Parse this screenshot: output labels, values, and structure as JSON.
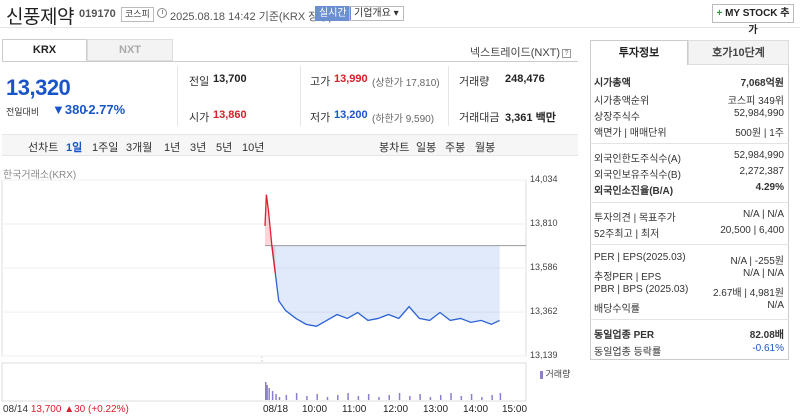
{
  "header": {
    "stock_name": "신풍제약",
    "stock_code": "019170",
    "market": "코스피",
    "datetime": "2025.08.18 14:42 기준(KRX 장중)",
    "realtime": "실시간",
    "company_info": "기업개요 ▾",
    "mystock_plus": "+",
    "mystock_label": " MY STOCK 추가"
  },
  "exchange_tabs": [
    "KRX",
    "NXT"
  ],
  "nextrade_label": "넥스트레이드(NXT)",
  "price": {
    "current": "13,320",
    "change_label": "전일대비",
    "change_arrow": "▼",
    "change_value": "380",
    "change_pct": "-2.77%"
  },
  "stats": {
    "prev_close_label": "전일",
    "prev_close": "13,700",
    "open_label": "시가",
    "open": "13,860",
    "high_label": "고가",
    "high": "13,990",
    "upper_limit": "(상한가 17,810)",
    "low_label": "저가",
    "low": "13,200",
    "lower_limit": "(하한가 9,590)",
    "volume_label": "거래량",
    "volume": "248,476",
    "amount_label": "거래대금",
    "amount": "3,361",
    "amount_unit": "백만"
  },
  "period_tabs": [
    "선차트",
    "1일",
    "1주일",
    "3개월",
    "1년",
    "3년",
    "5년",
    "10년"
  ],
  "candle_tabs": [
    "봉차트",
    "일봉",
    "주봉",
    "월봉"
  ],
  "chart": {
    "source": "한국거래소(KRX)",
    "volume_label": "거래량",
    "bottom_date": "08/14",
    "bottom_price": "13,700",
    "bottom_change": "▲30 (+0.22%)"
  },
  "chart_data": {
    "type": "line",
    "title": "",
    "xlabel": "",
    "ylabel": "",
    "x_ticks": [
      "08/18",
      "10:00",
      "11:00",
      "12:00",
      "13:00",
      "14:00",
      "15:00"
    ],
    "y_ticks": [
      "14,034",
      "13,810",
      "13,586",
      "13,362",
      "13,139"
    ],
    "ylim": [
      13139,
      14034
    ],
    "reference_price": 13700,
    "series": [
      {
        "x": [
          "09:00",
          "09:02",
          "09:05",
          "09:10",
          "09:15",
          "09:20",
          "09:30",
          "09:45",
          "10:00",
          "10:15",
          "10:30",
          "10:45",
          "11:00",
          "11:15",
          "11:30",
          "11:45",
          "12:00",
          "12:15",
          "12:30",
          "12:45",
          "13:00",
          "13:15",
          "13:30",
          "13:45",
          "14:00",
          "14:15",
          "14:30",
          "14:42"
        ],
        "values": [
          13800,
          13960,
          13880,
          13700,
          13560,
          13420,
          13370,
          13330,
          13300,
          13290,
          13320,
          13350,
          13330,
          13360,
          13320,
          13330,
          13350,
          13330,
          13390,
          13330,
          13320,
          13360,
          13320,
          13330,
          13310,
          13320,
          13300,
          13320
        ]
      }
    ]
  },
  "right_panel": {
    "tab_active": "투자정보",
    "tab_other": "호가10단계",
    "rows": [
      {
        "k": "시가총액",
        "v": "7,068억원",
        "bold": true
      },
      {
        "k": "시가총액순위",
        "v": "코스피 349위"
      },
      {
        "k": "상장주식수",
        "v": "52,984,990"
      },
      {
        "k": "액면가 | 매매단위",
        "v": "500원 | 1주"
      },
      {
        "k": "외국인한도주식수(A)",
        "v": "52,984,990"
      },
      {
        "k": "외국인보유주식수(B)",
        "v": "2,272,387"
      },
      {
        "k": "외국인소진율(B/A)",
        "v": "4.29%",
        "bold": true
      },
      {
        "k": "투자의견 | 목표주가",
        "v": "N/A | N/A"
      },
      {
        "k": "52주최고 | 최저",
        "v": "20,500 | 6,400"
      },
      {
        "k": "PER | EPS(2025.03)",
        "v": "N/A | -255원"
      },
      {
        "k": "추정PER | EPS",
        "v": "N/A | N/A"
      },
      {
        "k": "PBR | BPS (2025.03)",
        "v": "2.67배 | 4,981원"
      },
      {
        "k": "배당수익률",
        "v": "N/A"
      },
      {
        "k": "동일업종 PER",
        "v": "82.08배",
        "bold": true
      },
      {
        "k": "동일업종 등락률",
        "v": "-0.61%",
        "blue": true
      }
    ]
  }
}
